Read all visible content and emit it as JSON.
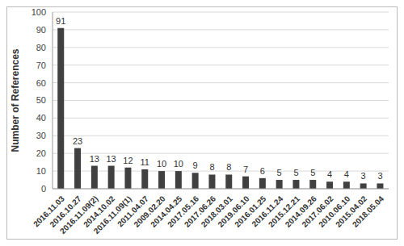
{
  "chart_data": {
    "type": "bar",
    "y_label": "Number of References",
    "categories": [
      "2016.11.03",
      "2016.10.27",
      "2016.11.09(2)",
      "2014.10.02",
      "2016.11.09(1)",
      "2011.04.07",
      "2009.02.20",
      "2014.04.25",
      "2017.05.16",
      "2017.06.26",
      "2018.03.01",
      "2019.06.10",
      "2016.01.25",
      "2016.11.24",
      "2015.12.21",
      "2014.09.26",
      "2017.06.02",
      "2010.06.10",
      "2015.04.02",
      "2018.05.04"
    ],
    "values": [
      91,
      23,
      13,
      13,
      12,
      11,
      10,
      10,
      9,
      8,
      8,
      7,
      6,
      5,
      5,
      5,
      4,
      4,
      3,
      3
    ],
    "color": "#404040",
    "ylim": [
      0,
      100
    ],
    "yticks": [
      0,
      10,
      20,
      30,
      40,
      50,
      60,
      70,
      80,
      90,
      100
    ],
    "grid": true,
    "data_labels": true
  }
}
